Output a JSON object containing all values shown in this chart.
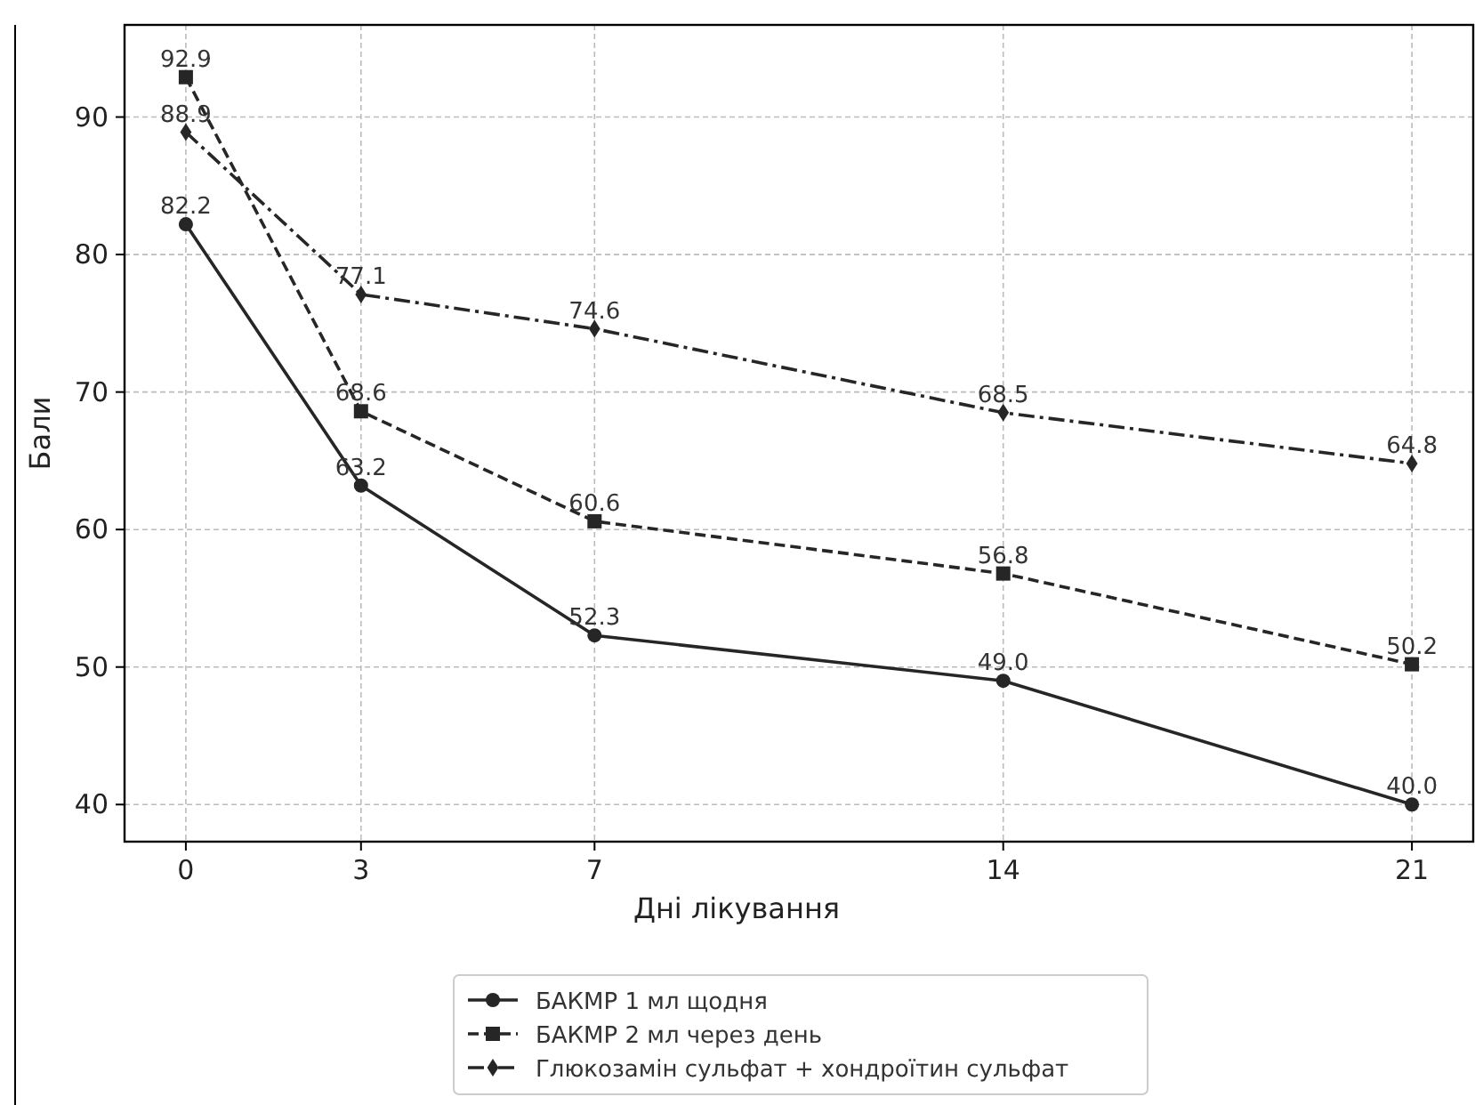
{
  "chart_data": {
    "type": "line",
    "xlabel": "Дні лікування",
    "ylabel": "Бали",
    "x": [
      0,
      3,
      7,
      14,
      21
    ],
    "xlim": [
      -1.05,
      22.05
    ],
    "xticks": [
      0,
      3,
      7,
      14,
      21
    ],
    "ylim": [
      37.3,
      96.7
    ],
    "yticks": [
      40,
      50,
      60,
      70,
      80,
      90
    ],
    "grid": true,
    "legend": "bottom",
    "series": [
      {
        "name": "БАКМР 1 мл щодня",
        "color": "#262626",
        "values": [
          82.2,
          63.2,
          52.3,
          49.0,
          40.0
        ],
        "value_labels": [
          "82.2",
          "63.2",
          "52.3",
          "49.0",
          "40.0"
        ],
        "marker": "circle",
        "line_style": "solid"
      },
      {
        "name": "БАКМР 2 мл через день",
        "color": "#262626",
        "values": [
          92.9,
          68.6,
          60.6,
          56.8,
          50.2
        ],
        "value_labels": [
          "92.9",
          "68.6",
          "60.6",
          "56.8",
          "50.2"
        ],
        "marker": "square",
        "line_style": "dashed"
      },
      {
        "name": "Глюкозамін сульфат + хондроїтин сульфат",
        "color": "#262626",
        "values": [
          88.9,
          77.1,
          74.6,
          68.5,
          64.8
        ],
        "value_labels": [
          "88.9",
          "77.1",
          "74.6",
          "68.5",
          "64.8"
        ],
        "marker": "diamond",
        "line_style": "dashdot"
      }
    ]
  }
}
